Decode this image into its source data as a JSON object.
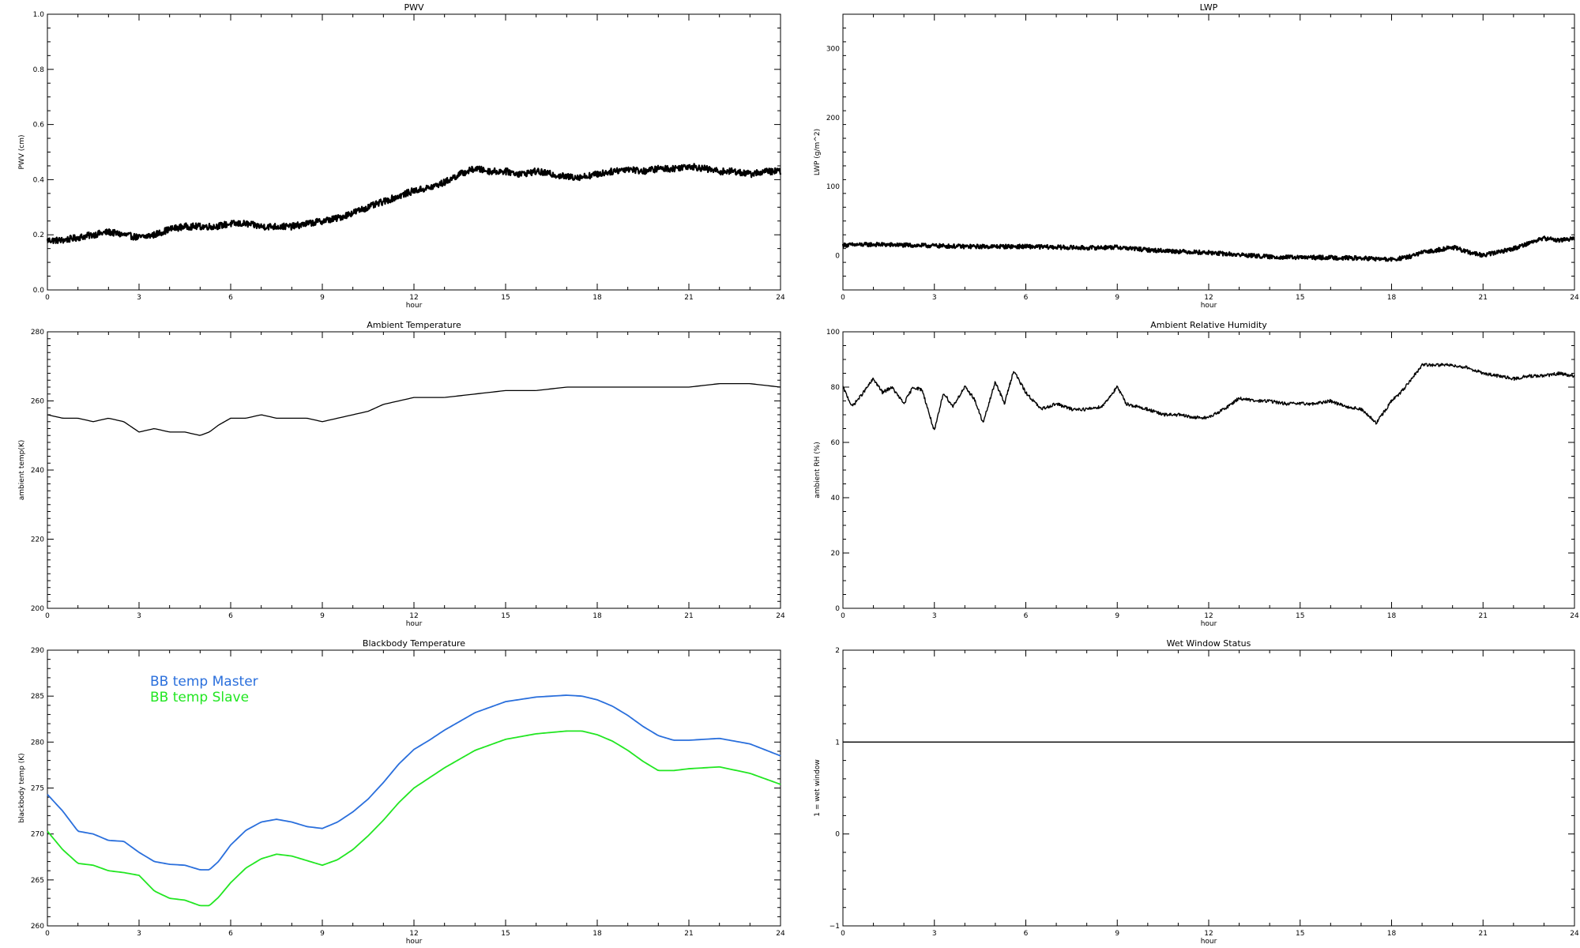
{
  "chart_data": [
    {
      "id": "pwv",
      "type": "line",
      "title": "PWV",
      "xlabel": "hour",
      "ylabel": "PWV (cm)",
      "xlim": [
        0,
        24
      ],
      "ylim": [
        0,
        1.0
      ],
      "xticks": [
        0,
        3,
        6,
        9,
        12,
        15,
        18,
        21,
        24
      ],
      "yticks": [
        0.0,
        0.2,
        0.4,
        0.6,
        0.8,
        1.0
      ],
      "ytick_labels": [
        "0.0",
        "0.2",
        "0.4",
        "0.6",
        "0.8",
        "1.0"
      ],
      "x_minor": 1,
      "y_minor": 0.05,
      "noise": 0.012,
      "series": [
        {
          "color": "#000000",
          "width": 2.2,
          "x": [
            0,
            0.5,
            1,
            1.5,
            2,
            2.5,
            3,
            3.5,
            4,
            4.5,
            5,
            5.5,
            6,
            6.5,
            7,
            7.5,
            8,
            8.5,
            9,
            9.5,
            10,
            10.5,
            11,
            11.5,
            12,
            12.5,
            13,
            13.5,
            14,
            14.5,
            15,
            15.5,
            16,
            16.5,
            17,
            17.5,
            18,
            18.5,
            19,
            19.5,
            20,
            20.5,
            21,
            21.5,
            22,
            22.5,
            23,
            23.5,
            24
          ],
          "y": [
            0.18,
            0.18,
            0.19,
            0.2,
            0.21,
            0.2,
            0.19,
            0.2,
            0.22,
            0.23,
            0.23,
            0.23,
            0.24,
            0.24,
            0.23,
            0.23,
            0.23,
            0.24,
            0.25,
            0.26,
            0.28,
            0.3,
            0.32,
            0.34,
            0.36,
            0.37,
            0.39,
            0.42,
            0.44,
            0.43,
            0.43,
            0.42,
            0.43,
            0.42,
            0.41,
            0.41,
            0.42,
            0.43,
            0.44,
            0.43,
            0.44,
            0.44,
            0.45,
            0.44,
            0.43,
            0.43,
            0.42,
            0.43,
            0.43
          ]
        }
      ]
    },
    {
      "id": "lwp",
      "type": "line",
      "title": "LWP",
      "xlabel": "hour",
      "ylabel": "LWP (g/m^2)",
      "xlim": [
        0,
        24
      ],
      "ylim": [
        -50,
        350
      ],
      "xticks": [
        0,
        3,
        6,
        9,
        12,
        15,
        18,
        21,
        24
      ],
      "yticks": [
        0,
        100,
        200,
        300
      ],
      "ytick_labels": [
        "0",
        "100",
        "200",
        "300"
      ],
      "x_minor": 1,
      "y_minor": 20,
      "noise": 3,
      "series": [
        {
          "color": "#000000",
          "width": 2.2,
          "x": [
            0,
            1,
            2,
            3,
            4,
            5,
            6,
            7,
            8,
            9,
            10,
            11,
            12,
            13,
            14,
            15,
            16,
            17,
            18,
            18.5,
            19,
            19.5,
            20,
            20.5,
            21,
            21.5,
            22,
            22.5,
            23,
            23.5,
            24
          ],
          "y": [
            15,
            16,
            15,
            14,
            13,
            13,
            13,
            12,
            11,
            12,
            8,
            6,
            4,
            1,
            -2,
            -3,
            -3,
            -4,
            -6,
            -3,
            4,
            8,
            12,
            5,
            0,
            5,
            10,
            18,
            25,
            22,
            25
          ]
        }
      ]
    },
    {
      "id": "ambient-temp",
      "type": "line",
      "title": "Ambient Temperature",
      "xlabel": "hour",
      "ylabel": "ambient temp(K)",
      "xlim": [
        0,
        24
      ],
      "ylim": [
        200,
        280
      ],
      "xticks": [
        0,
        3,
        6,
        9,
        12,
        15,
        18,
        21,
        24
      ],
      "yticks": [
        200,
        220,
        240,
        260,
        280
      ],
      "ytick_labels": [
        "200",
        "220",
        "240",
        "260",
        "280"
      ],
      "x_minor": 1,
      "y_minor": 2,
      "noise": 0,
      "series": [
        {
          "color": "#000000",
          "width": 1.3,
          "x": [
            0,
            0.5,
            1,
            1.5,
            2,
            2.5,
            3,
            3.5,
            4,
            4.5,
            5,
            5.3,
            5.6,
            6,
            6.5,
            7,
            7.5,
            8,
            8.5,
            9,
            9.5,
            10,
            10.5,
            11,
            11.5,
            12,
            13,
            14,
            15,
            16,
            17,
            18,
            19,
            20,
            21,
            22,
            23,
            24
          ],
          "y": [
            256,
            255,
            255,
            254,
            255,
            254,
            251,
            252,
            251,
            251,
            250,
            251,
            253,
            255,
            255,
            256,
            255,
            255,
            255,
            254,
            255,
            256,
            257,
            259,
            260,
            261,
            261,
            262,
            263,
            263,
            264,
            264,
            264,
            264,
            264,
            265,
            265,
            264
          ]
        }
      ]
    },
    {
      "id": "ambient-rh",
      "type": "line",
      "title": "Ambient Relative Humidity",
      "xlabel": "hour",
      "ylabel": "ambient RH (%)",
      "xlim": [
        0,
        24
      ],
      "ylim": [
        0,
        100
      ],
      "xticks": [
        0,
        3,
        6,
        9,
        12,
        15,
        18,
        21,
        24
      ],
      "yticks": [
        0,
        20,
        40,
        60,
        80,
        100
      ],
      "ytick_labels": [
        "0",
        "20",
        "40",
        "60",
        "80",
        "100"
      ],
      "x_minor": 1,
      "y_minor": 5,
      "noise": 0.6,
      "series": [
        {
          "color": "#000000",
          "width": 1.4,
          "x": [
            0,
            0.3,
            0.6,
            1,
            1.3,
            1.6,
            2,
            2.3,
            2.6,
            3,
            3.3,
            3.6,
            4,
            4.3,
            4.6,
            5,
            5.3,
            5.6,
            6,
            6.5,
            7,
            7.5,
            8,
            8.5,
            9,
            9.3,
            9.6,
            10,
            10.5,
            11,
            11.5,
            12,
            12.5,
            13,
            13.5,
            14,
            14.5,
            15,
            15.5,
            16,
            16.5,
            17,
            17.5,
            18,
            18.3,
            18.6,
            19,
            19.5,
            20,
            20.5,
            21,
            21.5,
            22,
            22.5,
            23,
            23.5,
            24
          ],
          "y": [
            80,
            73,
            77,
            83,
            78,
            80,
            74,
            80,
            79,
            64,
            78,
            73,
            80,
            76,
            67,
            82,
            74,
            86,
            78,
            72,
            74,
            72,
            72,
            73,
            80,
            74,
            73,
            72,
            70,
            70,
            69,
            69,
            72,
            76,
            75,
            75,
            74,
            74,
            74,
            75,
            73,
            72,
            67,
            75,
            78,
            82,
            88,
            88,
            88,
            87,
            85,
            84,
            83,
            84,
            84,
            85,
            84
          ]
        }
      ]
    },
    {
      "id": "blackbody-temp",
      "type": "line",
      "title": "Blackbody Temperature",
      "xlabel": "hour",
      "ylabel": "blackbody temp (K)",
      "xlim": [
        0,
        24
      ],
      "ylim": [
        260,
        290
      ],
      "xticks": [
        0,
        3,
        6,
        9,
        12,
        15,
        18,
        21,
        24
      ],
      "yticks": [
        260,
        265,
        270,
        275,
        280,
        285,
        290
      ],
      "ytick_labels": [
        "260",
        "265",
        "270",
        "275",
        "280",
        "285",
        "290"
      ],
      "x_minor": 1,
      "y_minor": 1,
      "noise": 0,
      "legend": [
        "BB temp Master",
        "BB temp Slave"
      ],
      "series": [
        {
          "name": "BB temp Master",
          "color": "#2a6fdc",
          "width": 1.8,
          "x": [
            0,
            0.5,
            1,
            1.5,
            2,
            2.5,
            3,
            3.5,
            4,
            4.5,
            5,
            5.3,
            5.6,
            6,
            6.5,
            7,
            7.5,
            8,
            8.5,
            9,
            9.5,
            10,
            10.5,
            11,
            11.5,
            12,
            12.5,
            13,
            14,
            15,
            16,
            17,
            17.5,
            18,
            18.5,
            19,
            19.5,
            20,
            20.5,
            21,
            22,
            23,
            24
          ],
          "y": [
            274.3,
            272.5,
            270.3,
            270,
            269.3,
            269.2,
            268,
            267,
            266.7,
            266.6,
            266.1,
            266.1,
            267,
            268.8,
            270.4,
            271.3,
            271.6,
            271.3,
            270.8,
            270.6,
            271.3,
            272.4,
            273.8,
            275.6,
            277.6,
            279.2,
            280.2,
            281.3,
            283.2,
            284.4,
            284.9,
            285.1,
            285,
            284.6,
            283.9,
            282.9,
            281.7,
            280.7,
            280.2,
            280.2,
            280.4,
            279.8,
            278.5
          ]
        },
        {
          "name": "BB temp Slave",
          "color": "#22e622",
          "width": 1.8,
          "x": [
            0,
            0.5,
            1,
            1.5,
            2,
            2.5,
            3,
            3.5,
            4,
            4.5,
            5,
            5.3,
            5.6,
            6,
            6.5,
            7,
            7.5,
            8,
            8.5,
            9,
            9.5,
            10,
            10.5,
            11,
            11.5,
            12,
            12.5,
            13,
            14,
            15,
            16,
            17,
            17.5,
            18,
            18.5,
            19,
            19.5,
            20,
            20.5,
            21,
            22,
            23,
            24
          ],
          "y": [
            270.3,
            268.3,
            266.8,
            266.6,
            266,
            265.8,
            265.5,
            263.8,
            263,
            262.8,
            262.2,
            262.2,
            263.1,
            264.7,
            266.3,
            267.3,
            267.8,
            267.6,
            267.1,
            266.6,
            267.2,
            268.3,
            269.8,
            271.5,
            273.4,
            275,
            276.1,
            277.2,
            279.1,
            280.3,
            280.9,
            281.2,
            281.2,
            280.8,
            280.1,
            279.1,
            277.9,
            276.9,
            276.9,
            277.1,
            277.3,
            276.6,
            275.4
          ]
        }
      ]
    },
    {
      "id": "wet-window",
      "type": "line",
      "title": "Wet Window Status",
      "xlabel": "hour",
      "ylabel": "1 = wet window",
      "xlim": [
        0,
        24
      ],
      "ylim": [
        -1,
        2
      ],
      "xticks": [
        0,
        3,
        6,
        9,
        12,
        15,
        18,
        21,
        24
      ],
      "yticks": [
        -1,
        0,
        1,
        2
      ],
      "ytick_labels": [
        "−1",
        "0",
        "1",
        "2"
      ],
      "x_minor": 1,
      "y_minor": 0.2,
      "noise": 0,
      "series": [
        {
          "color": "#000000",
          "width": 1.3,
          "x": [
            0,
            24
          ],
          "y": [
            1,
            1
          ]
        }
      ]
    }
  ]
}
